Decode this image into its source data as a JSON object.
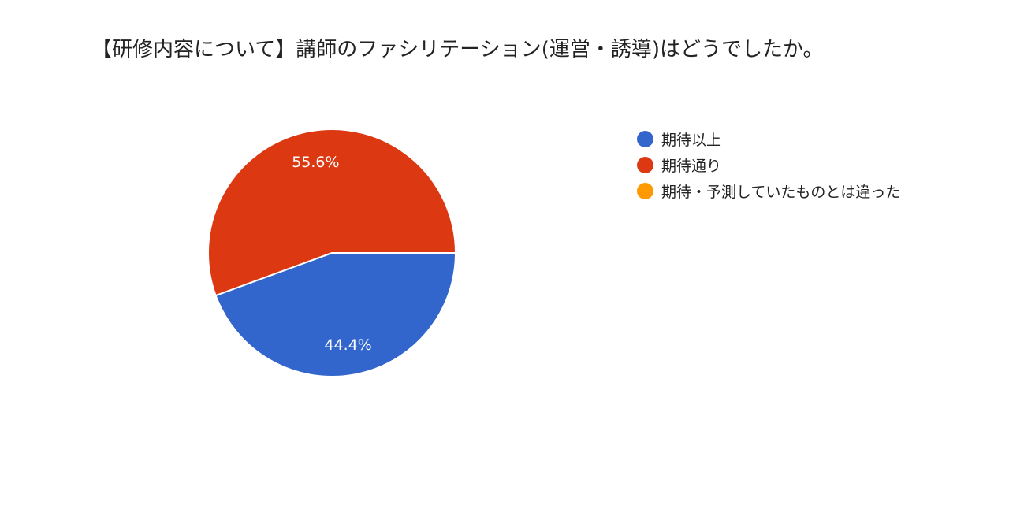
{
  "chart_data": {
    "type": "pie",
    "title": "【研修内容について】講師のファシリテーション(運営・誘導)はどうでしたか。",
    "categories": [
      "期待以上",
      "期待通り",
      "期待・予測していたものとは違った"
    ],
    "values": [
      44.4,
      55.6,
      0
    ],
    "labels": [
      "44.4%",
      "55.6%",
      ""
    ],
    "colors": [
      "#3366cc",
      "#dc3912",
      "#ff9900"
    ],
    "legend_position": "right"
  }
}
